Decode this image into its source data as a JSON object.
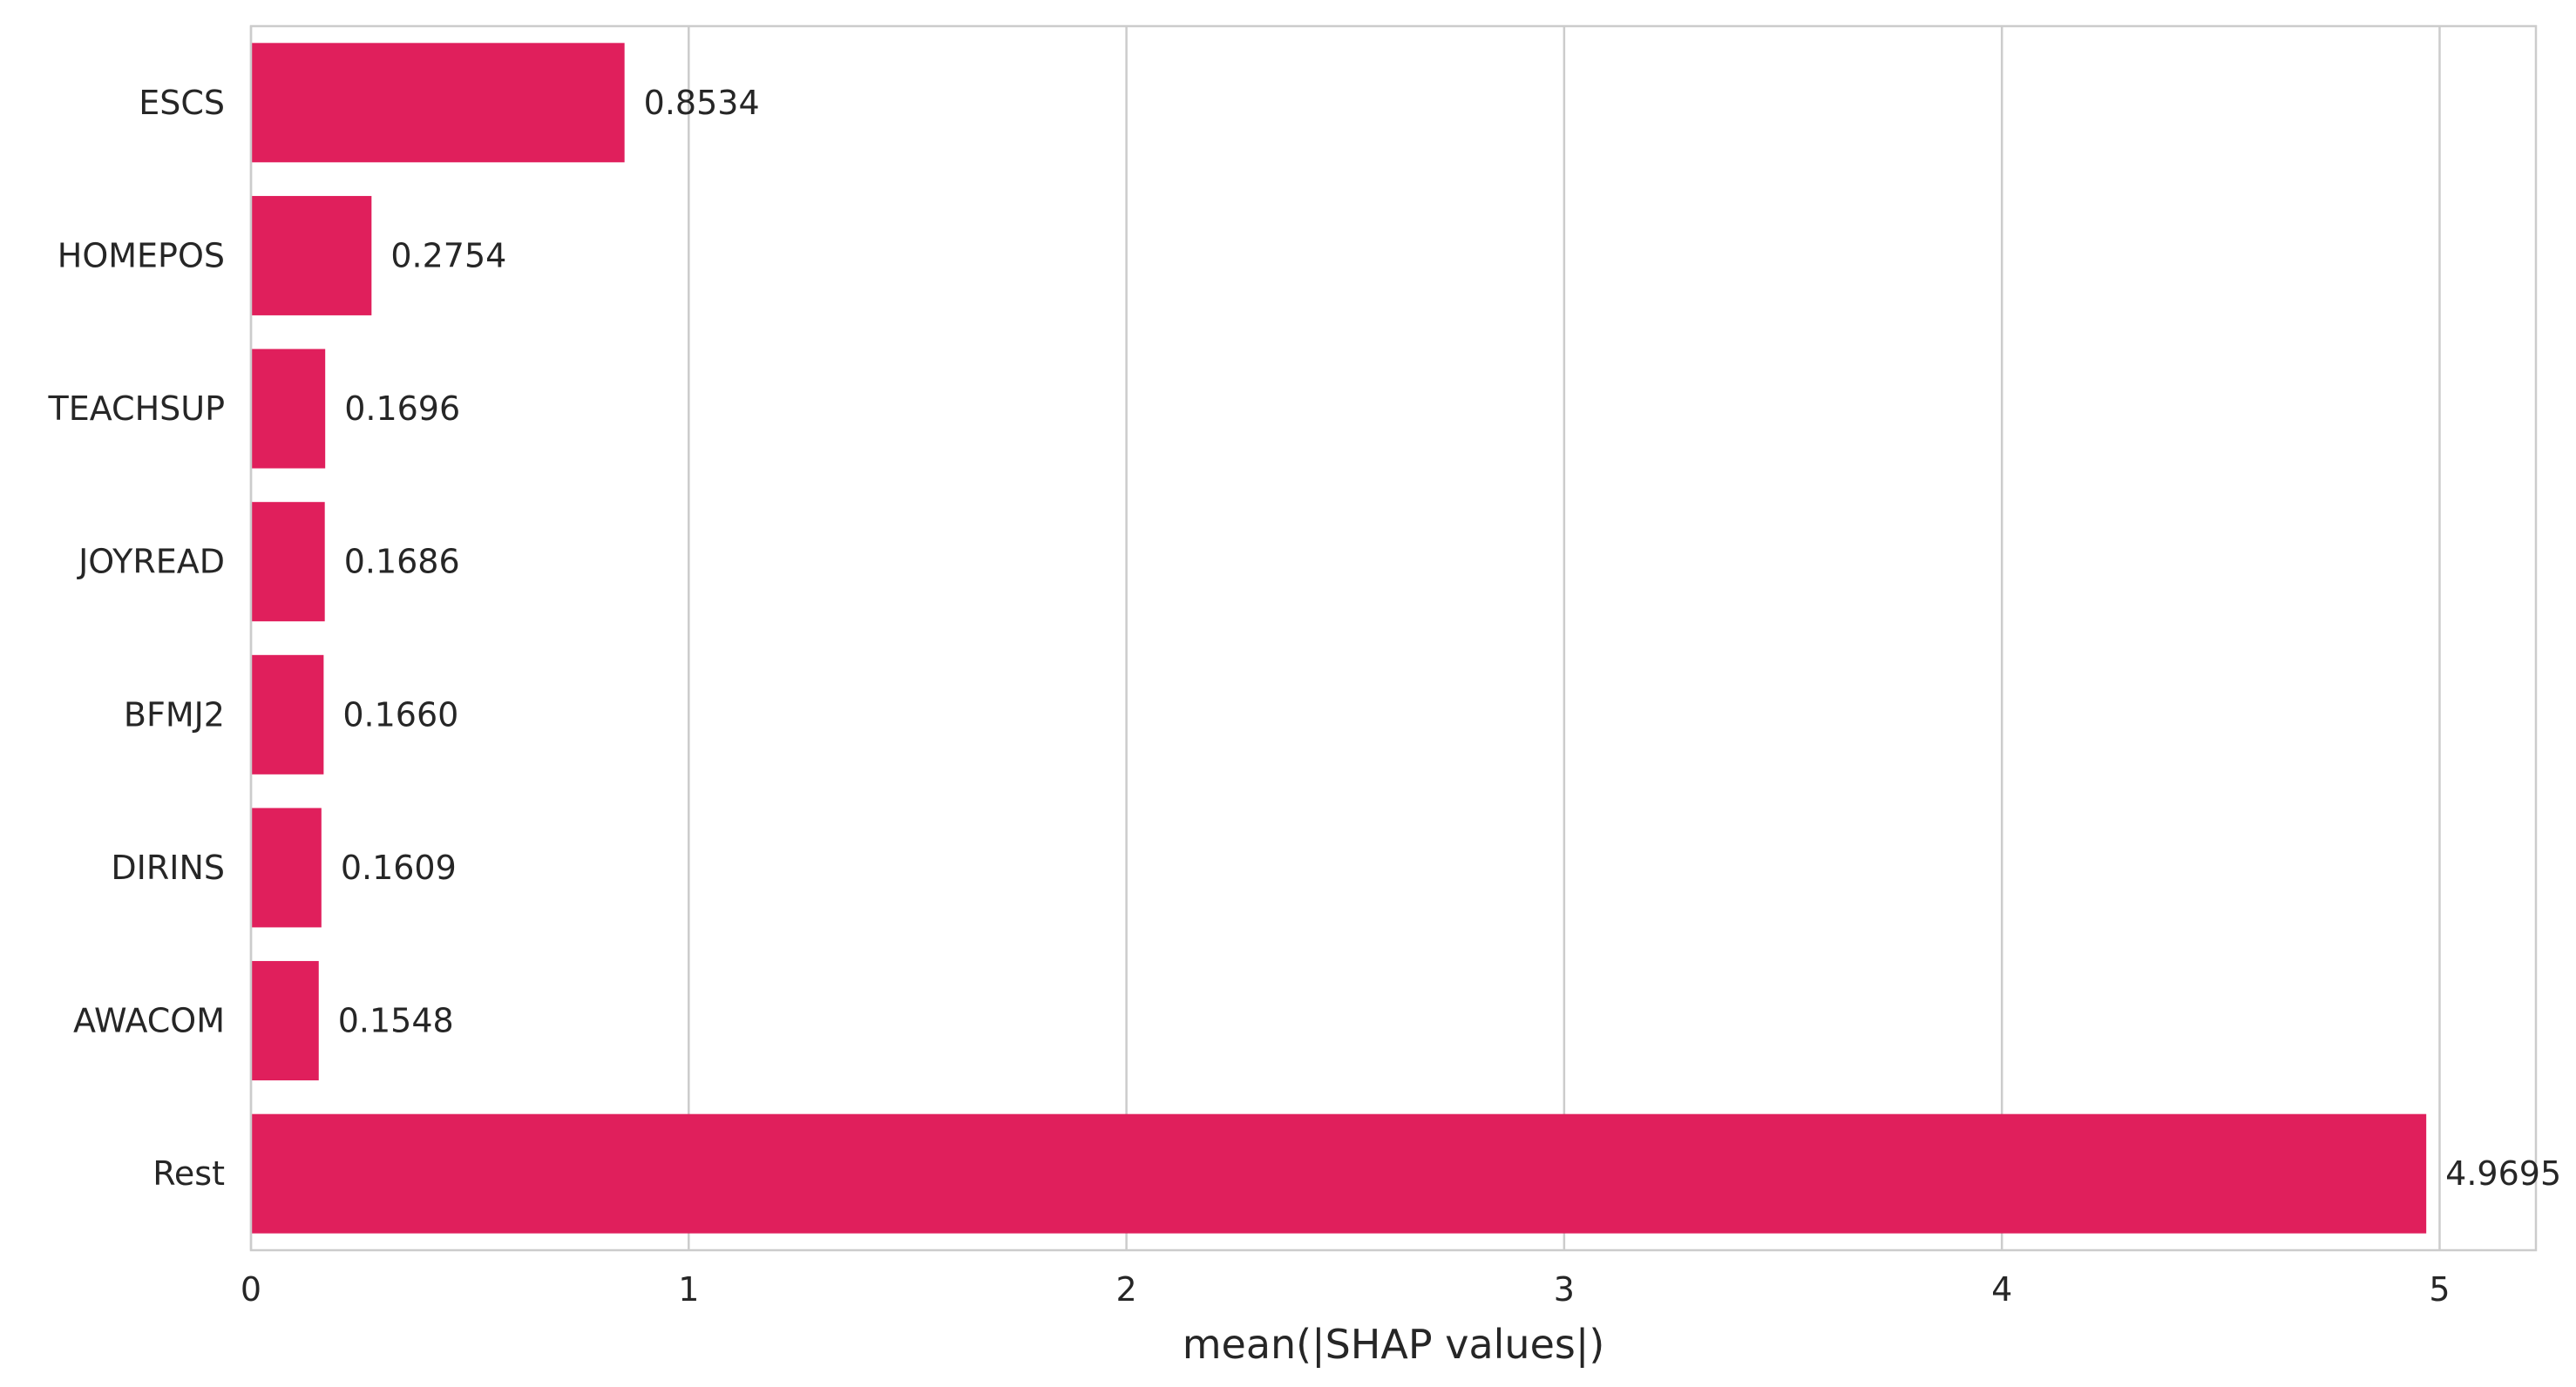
{
  "chart_data": {
    "type": "bar",
    "orientation": "horizontal",
    "categories": [
      "ESCS",
      "HOMEPOS",
      "TEACHSUP",
      "JOYREAD",
      "BFMJ2",
      "DIRINS",
      "AWACOM",
      "Rest"
    ],
    "values": [
      0.8534,
      0.2754,
      0.1696,
      0.1686,
      0.166,
      0.1609,
      0.1548,
      4.9695
    ],
    "value_labels": [
      "0.8534",
      "0.2754",
      "0.1696",
      "0.1686",
      "0.1660",
      "0.1609",
      "0.1548",
      "4.9695"
    ],
    "xlabel": "mean(|SHAP values|)",
    "ylabel": "",
    "title": "",
    "xlim": [
      0,
      5.22
    ],
    "xticks": [
      0,
      1,
      2,
      3,
      4,
      5
    ],
    "xtick_labels": [
      "0",
      "1",
      "2",
      "3",
      "4",
      "5"
    ],
    "grid": "vertical",
    "legend": "none",
    "colors": {
      "bar": "#e01f5c",
      "grid": "#cccccc",
      "frame": "#cccccc",
      "text": "#262626"
    }
  }
}
